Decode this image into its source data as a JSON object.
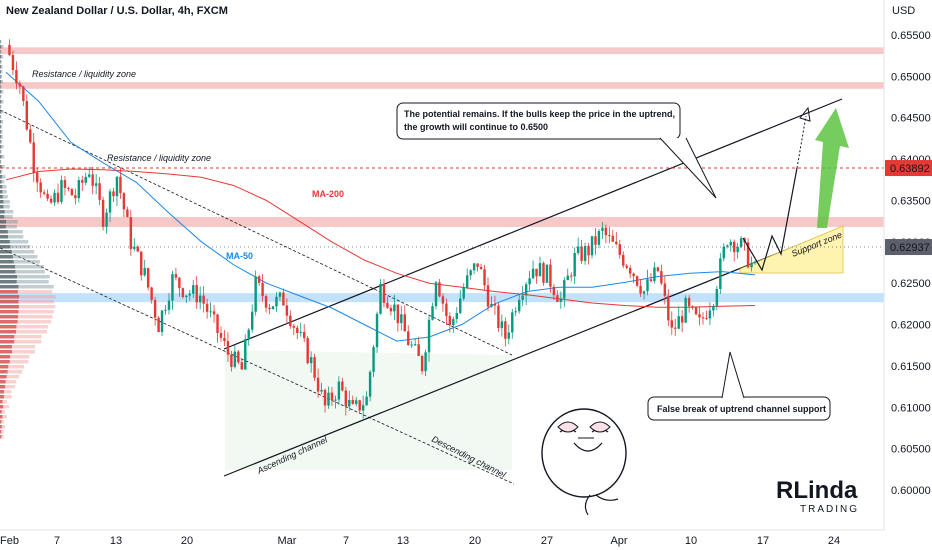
{
  "chart_data": {
    "type": "candlestick",
    "title": "New Zealand Dollar / U.S. Dollar, 4h, FXCM",
    "currency": "USD",
    "y_ticks": [
      "0.65500",
      "0.65000",
      "0.64500",
      "0.64000",
      "0.63500",
      "0.63000",
      "0.62500",
      "0.62000",
      "0.61500",
      "0.61000",
      "0.60500",
      "0.60000"
    ],
    "y_tick_values": [
      0.655,
      0.65,
      0.645,
      0.64,
      0.635,
      0.63,
      0.625,
      0.62,
      0.615,
      0.61,
      0.605,
      0.6
    ],
    "ylim": [
      0.5955,
      0.6565
    ],
    "x_ticks": [
      "Feb",
      "7",
      "13",
      "20",
      "Mar",
      "7",
      "13",
      "20",
      "27",
      "Apr",
      "10",
      "17",
      "24"
    ],
    "price_labels": [
      {
        "text": "0.63892",
        "value": 0.63892,
        "color": "#e53935"
      },
      {
        "text": "0.62937",
        "value": 0.62937,
        "color": "#5d606b"
      }
    ],
    "zones": [
      {
        "name": "resistance-top",
        "from": 0.6527,
        "to": 0.6535,
        "color": "#ef9a9a"
      },
      {
        "name": "resistance-2",
        "from": 0.6485,
        "to": 0.6493,
        "color": "#ef9a9a"
      },
      {
        "name": "resistance-3",
        "from": 0.6318,
        "to": 0.633,
        "color": "#ef9a9a"
      },
      {
        "name": "support-blue",
        "from": 0.6227,
        "to": 0.6238,
        "color": "#90caf9"
      }
    ],
    "labels": {
      "resistance_1": "Resistance / liquidity zone",
      "resistance_2": "Resistance / liquidity zone",
      "ma200": "MA-200",
      "ma50": "MA-50",
      "ascending": "Ascending channel",
      "descending": "Descending channel",
      "support_zone": "Support zone",
      "callout_top": [
        "The potential remains. If the bulls keep the price in the uptrend,",
        "the growth will continue to 0.6500"
      ],
      "callout_bottom": "False break of uptrend channel support",
      "brand_1": "RLinda",
      "brand_2": "TRADING"
    },
    "series": [
      {
        "name": "MA-200",
        "color": "#e53935",
        "values": [
          0.6375,
          0.6385,
          0.6388,
          0.6387,
          0.6385,
          0.6382,
          0.6378,
          0.6368,
          0.635,
          0.6325,
          0.63,
          0.6278,
          0.6262,
          0.625,
          0.6245,
          0.624,
          0.6236,
          0.6231,
          0.6226,
          0.6223,
          0.6221,
          0.6221,
          0.6222,
          0.6223
        ]
      },
      {
        "name": "MA-50",
        "color": "#1e88e5",
        "values": [
          0.6505,
          0.647,
          0.642,
          0.6395,
          0.6372,
          0.6335,
          0.63,
          0.6272,
          0.625,
          0.6235,
          0.622,
          0.62,
          0.618,
          0.6185,
          0.62,
          0.6225,
          0.624,
          0.6245,
          0.6245,
          0.6251,
          0.6258,
          0.6262,
          0.6264,
          0.626
        ]
      }
    ],
    "close_path": [
      0.6538,
      0.649,
      0.6395,
      0.634,
      0.6365,
      0.6355,
      0.6388,
      0.633,
      0.638,
      0.63,
      0.626,
      0.62,
      0.6255,
      0.624,
      0.6235,
      0.62,
      0.6165,
      0.6145,
      0.6248,
      0.6225,
      0.623,
      0.619,
      0.6155,
      0.61,
      0.6125,
      0.6095,
      0.611,
      0.6245,
      0.622,
      0.618,
      0.615,
      0.626,
      0.6195,
      0.6245,
      0.6275,
      0.622,
      0.6185,
      0.624,
      0.627,
      0.626,
      0.623,
      0.628,
      0.629,
      0.6312,
      0.629,
      0.627,
      0.624,
      0.6265,
      0.619,
      0.622,
      0.62,
      0.6235,
      0.6305,
      0.6295,
      0.6265
    ]
  }
}
